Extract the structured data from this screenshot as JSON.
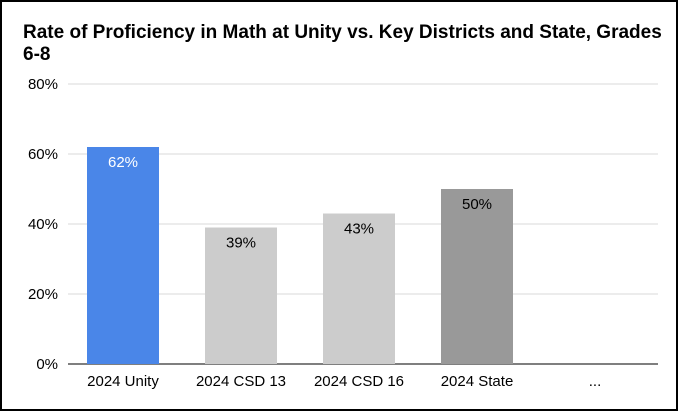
{
  "chart_data": {
    "type": "bar",
    "title": "Rate of Proficiency in Math at Unity vs. Key Districts and State, Grades 6-8",
    "xlabel": "",
    "ylabel": "",
    "ylim": [
      0,
      80
    ],
    "yticks": [
      0,
      20,
      40,
      60,
      80
    ],
    "ytick_labels": [
      "0%",
      "20%",
      "40%",
      "60%",
      "80%"
    ],
    "grid": true,
    "legend": "none",
    "categories": [
      "2024 Unity",
      "2024 CSD 13",
      "2024 CSD 16",
      "2024 State",
      "..."
    ],
    "values": [
      62,
      39,
      43,
      50,
      null
    ],
    "data_labels": [
      "62%",
      "39%",
      "43%",
      "50%",
      ""
    ],
    "bar_colors": [
      "#4a86e8",
      "#cccccc",
      "#cccccc",
      "#999999",
      "#cccccc"
    ],
    "label_colors": [
      "#ffffff",
      "#000000",
      "#000000",
      "#000000",
      "#000000"
    ]
  },
  "colors": {
    "grid": "#d9d9d9",
    "axis": "#333333",
    "border": "#000000"
  }
}
